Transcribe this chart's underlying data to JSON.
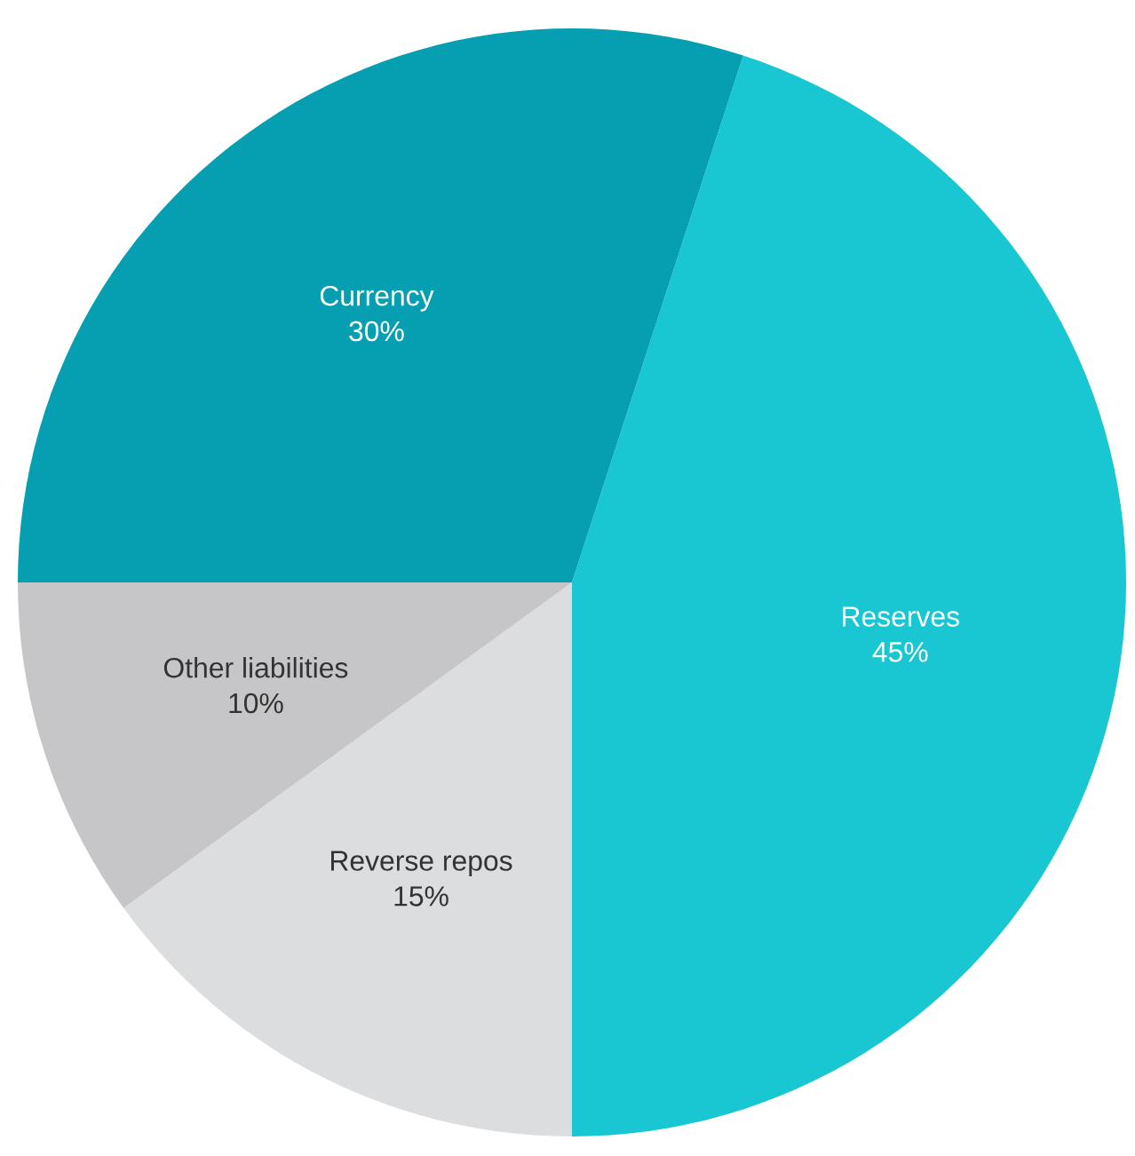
{
  "chart_data": {
    "type": "pie",
    "categories": [
      "Reserves",
      "Reverse repos",
      "Other liabilities",
      "Currency"
    ],
    "values": [
      45,
      15,
      10,
      30
    ],
    "value_labels": [
      "45%",
      "15%",
      "10%",
      "30%"
    ],
    "colors": [
      "#19c7d2",
      "#dcdddf",
      "#c6c6c8",
      "#069fb2"
    ]
  }
}
